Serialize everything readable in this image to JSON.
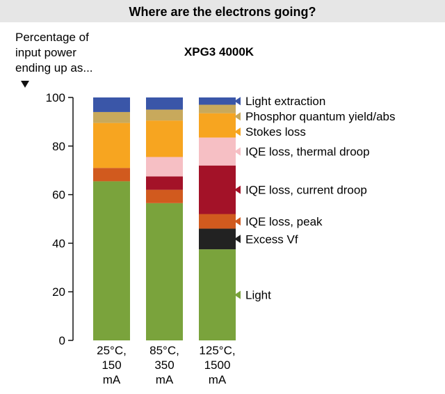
{
  "chart_data": {
    "type": "bar",
    "stacked": true,
    "title": "Where are the electrons going?",
    "subtitle": "XPG3 4000K",
    "ylabel": [
      "Percentage of",
      "input power",
      "ending up as..."
    ],
    "xlabel": "",
    "ylim": [
      0,
      100
    ],
    "yticks": [
      0,
      20,
      40,
      60,
      80,
      100
    ],
    "grid": false,
    "legend_position": "right",
    "categories": [
      [
        "25°C,",
        "150",
        "mA"
      ],
      [
        "85°C,",
        "350",
        "mA"
      ],
      [
        "125°C,",
        "1500",
        "mA"
      ]
    ],
    "series": [
      {
        "name": "Light",
        "color": "#7aa33c",
        "values": [
          65.5,
          56.5,
          37.5
        ]
      },
      {
        "name": "Excess Vf",
        "color": "#222222",
        "values": [
          0,
          0,
          8.5
        ]
      },
      {
        "name": "IQE loss, peak",
        "color": "#d15a1e",
        "values": [
          5.5,
          5.5,
          6
        ]
      },
      {
        "name": "IQE loss, current droop",
        "color": "#a31228",
        "values": [
          0,
          5.5,
          20
        ]
      },
      {
        "name": "IQE loss, thermal droop",
        "color": "#f6bfc4",
        "values": [
          0,
          8,
          11.5
        ]
      },
      {
        "name": "Stokes loss",
        "color": "#f7a520",
        "values": [
          18.5,
          15,
          10
        ]
      },
      {
        "name": "Phosphor quantum yield/abs",
        "color": "#c8a95c",
        "values": [
          4.5,
          4.5,
          3.5
        ]
      },
      {
        "name": "Light extraction",
        "color": "#3a56a8",
        "values": [
          6,
          5,
          3
        ]
      }
    ],
    "legend_order": [
      "Light extraction",
      "Phosphor quantum yield/abs",
      "Stokes loss",
      "IQE loss, thermal droop",
      "IQE loss, current droop",
      "IQE loss, peak",
      "Excess Vf",
      "Light"
    ]
  }
}
